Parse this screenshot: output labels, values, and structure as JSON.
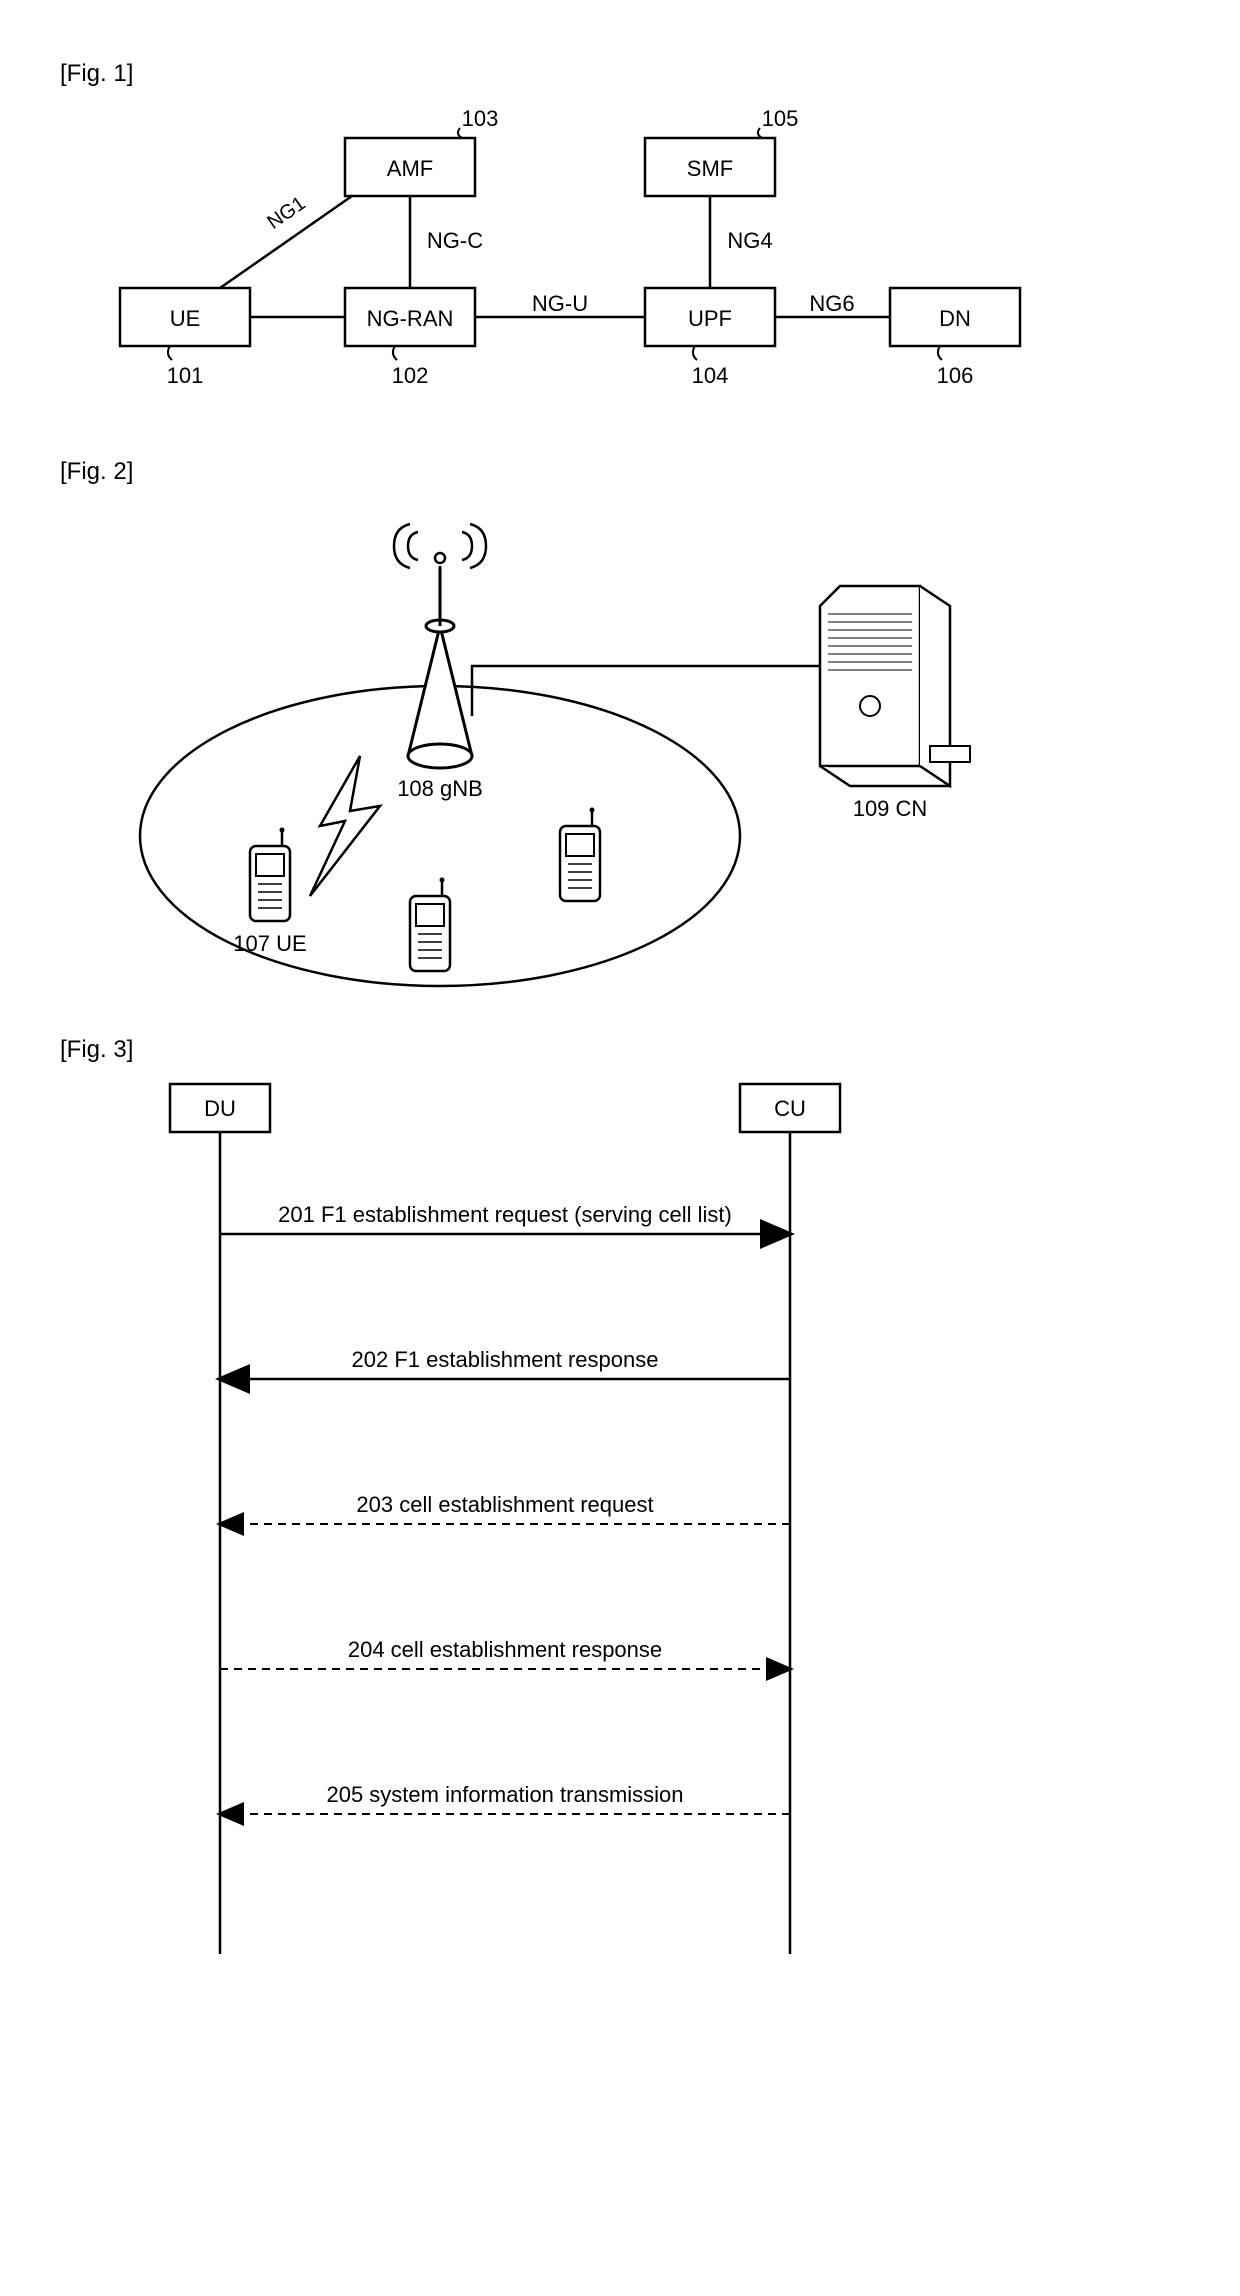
{
  "fig1": {
    "label": "[Fig. 1]",
    "nodes": {
      "ue": {
        "text": "UE",
        "ref": "101"
      },
      "ngran": {
        "text": "NG-RAN",
        "ref": "102"
      },
      "amf": {
        "text": "AMF",
        "ref": "103"
      },
      "upf": {
        "text": "UPF",
        "ref": "104"
      },
      "smf": {
        "text": "SMF",
        "ref": "105"
      },
      "dn": {
        "text": "DN",
        "ref": "106"
      }
    },
    "edges": {
      "ng1": "NG1",
      "ngc": "NG-C",
      "ngu": "NG-U",
      "ng4": "NG4",
      "ng6": "NG6"
    }
  },
  "fig2": {
    "label": "[Fig. 2]",
    "ue": {
      "text": "107 UE"
    },
    "gnb": {
      "text": "108 gNB"
    },
    "cn": {
      "text": "109 CN"
    },
    "antenna": "((○))"
  },
  "fig3": {
    "label": "[Fig. 3]",
    "du": "DU",
    "cu": "CU",
    "messages": [
      {
        "text": "201 F1 establishment request (serving cell list)",
        "dir": "right",
        "dashed": false
      },
      {
        "text": "202 F1 establishment response",
        "dir": "left",
        "dashed": false
      },
      {
        "text": "203 cell establishment request",
        "dir": "left",
        "dashed": true
      },
      {
        "text": "204 cell establishment response",
        "dir": "right",
        "dashed": true
      },
      {
        "text": "205 system information transmission",
        "dir": "left",
        "dashed": true
      }
    ]
  },
  "style": {
    "bg": "#ffffff",
    "stroke": "#000000",
    "box_stroke_w": 2.5,
    "font_box": 24,
    "font_label": 24,
    "font_ref": 22,
    "font_msg": 22
  }
}
